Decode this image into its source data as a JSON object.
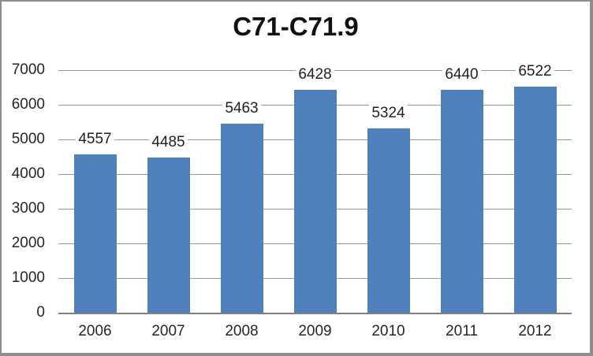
{
  "frame": {
    "background": "#ffffff",
    "border_color": "#8d8d8d"
  },
  "chart_data": {
    "type": "bar",
    "title": "C71-C71.9",
    "categories": [
      "2006",
      "2007",
      "2008",
      "2009",
      "2010",
      "2011",
      "2012"
    ],
    "values": [
      4557,
      4485,
      5463,
      6428,
      5324,
      6440,
      6522
    ],
    "data_labels": [
      "4557",
      "4485",
      "5463",
      "6428",
      "5324",
      "6440",
      "6522"
    ],
    "ytick_labels": [
      "0",
      "1000",
      "2000",
      "3000",
      "4000",
      "5000",
      "6000",
      "7000"
    ],
    "yticks": [
      0,
      1000,
      2000,
      3000,
      4000,
      5000,
      6000,
      7000
    ],
    "ylim": [
      0,
      7000
    ],
    "xlabel": "",
    "ylabel": "",
    "grid": "horizontal",
    "legend": "none",
    "bar_color": "#4f81bd",
    "gridline_color": "#999999",
    "axis_line_color": "#808080",
    "title_color": "#111111",
    "tick_label_color": "#262626",
    "data_label_color": "#1f1f1f"
  }
}
